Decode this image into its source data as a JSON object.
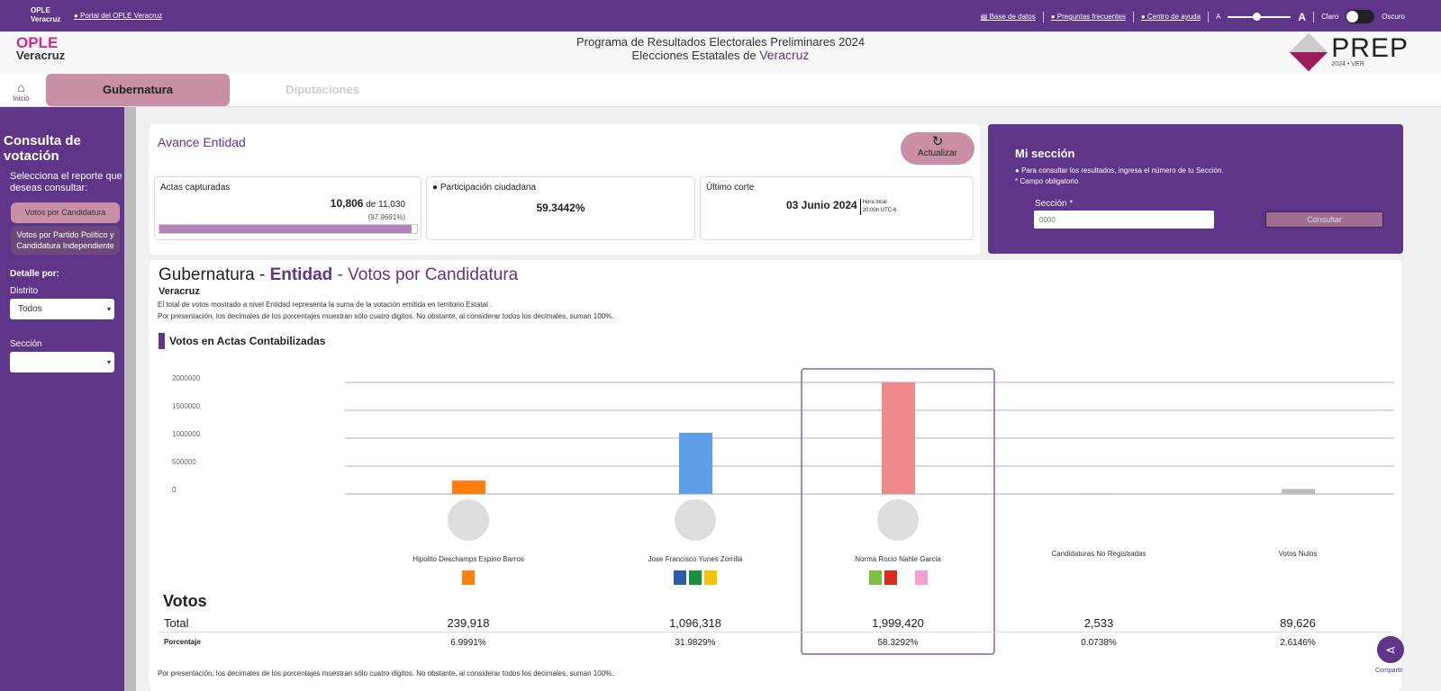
{
  "topbar": {
    "logo": "OPLE Veracruz",
    "portal_link": "Portal del OPLE Veracruz",
    "links": [
      "Base de datos",
      "Preguntas frecuentes",
      "Centro de ayuda"
    ],
    "font_small": "A",
    "font_large": "A",
    "font_size_level_percent": 45,
    "theme_light": "Claro",
    "theme_dark": "Oscuro"
  },
  "header": {
    "logo_top": "OPLE",
    "logo_bottom": "Veracruz",
    "title_line1": "Programa de Resultados Electorales Preliminares 2024",
    "title_line2_prefix": "Elecciones Estatales de",
    "title_line2_state": "Veracruz",
    "prep_logo": "PREP",
    "prep_year": "2024",
    "prep_state": "VER"
  },
  "nav": {
    "home": "Inicio",
    "tabs": [
      {
        "label": "Gubernatura",
        "active": true
      },
      {
        "label": "Diputaciones",
        "active": false
      }
    ]
  },
  "sidebar": {
    "title": "Consulta de votación",
    "subtitle": "Selecciona el reporte que deseas consultar:",
    "reports": [
      "Votos por Candidatura",
      "Votos por Partido Político y Candidatura Independiente"
    ],
    "detail_label": "Detalle por:",
    "distrito_label": "Distrito",
    "distrito_value": "Todos",
    "seccion_label": "Sección",
    "seccion_value": ""
  },
  "avance": {
    "title": "Avance Entidad",
    "refresh": "Actualizar",
    "actas_label": "Actas capturadas",
    "actas_value": "10,806",
    "actas_of": "de 11,030",
    "actas_pct": "(97.9691%)",
    "actas_progress_percent": 97.9691,
    "participacion_label": "Participación ciudadana",
    "participacion_value": "59.3442%",
    "corte_label": "Último corte",
    "corte_date": "03 Junio 2024",
    "corte_hora_label": "Hora local",
    "corte_hora": "20:00h UTC-6"
  },
  "mi_seccion": {
    "title": "Mi sección",
    "info": "Para consultar los resultados, ingresa el número de tu Sección.",
    "required": "* Campo obligatorio",
    "field_label": "Sección *",
    "placeholder": "0000",
    "button": "Consultar"
  },
  "main": {
    "title_a": "Gubernatura - ",
    "title_b": "Entidad",
    "title_c": " - Votos por Candidatura",
    "state": "Veracruz",
    "note1": "El total de votos mostrado a nivel Entidad representa la suma de la votación emitida en territorio Estatal .",
    "note2": "Por presentación, los decimales de los porcentajes muestran sólo cuatro digitos. No obstante, al considerar todos los decimales, suman 100%.",
    "chart_title": "Votos en Actas Contabilizadas",
    "votos_title": "Votos",
    "total_label": "Total",
    "pct_label": "Porcentaje",
    "footer_note": "Por presentación, los decimales de los porcentajes muestran sólo cuatro digitos. No obstante, al considerar todos los decimales, suman 100%."
  },
  "chart_data": {
    "type": "bar",
    "categories": [
      "Hipolito Deschamps Espino Barros",
      "Jose Francisco Yunes Zorrilla",
      "Norma Rocio Nahle Garcia",
      "Candidaturas No Registradas",
      "Votos Nulos"
    ],
    "values": [
      239918,
      1096318,
      1999420,
      2533,
      89626
    ],
    "percentages": [
      "6.9991%",
      "31.9829%",
      "58.3292%",
      "0.0738%",
      "2.6146%"
    ],
    "totals_text": [
      "239,918",
      "1,096,318",
      "1,999,420",
      "2,533",
      "89,626"
    ],
    "colors": [
      "#ff7f0e",
      "#5f9ee9",
      "#f08a8a",
      "#cccccc",
      "#bbbbbb"
    ],
    "yticks": [
      "0",
      "500000",
      "1000000",
      "1500000",
      "2000000"
    ],
    "ylim": [
      0,
      2000000
    ],
    "grid": true,
    "highlighted": "Norma Rocio Nahle Garcia"
  },
  "share": "Compartir"
}
